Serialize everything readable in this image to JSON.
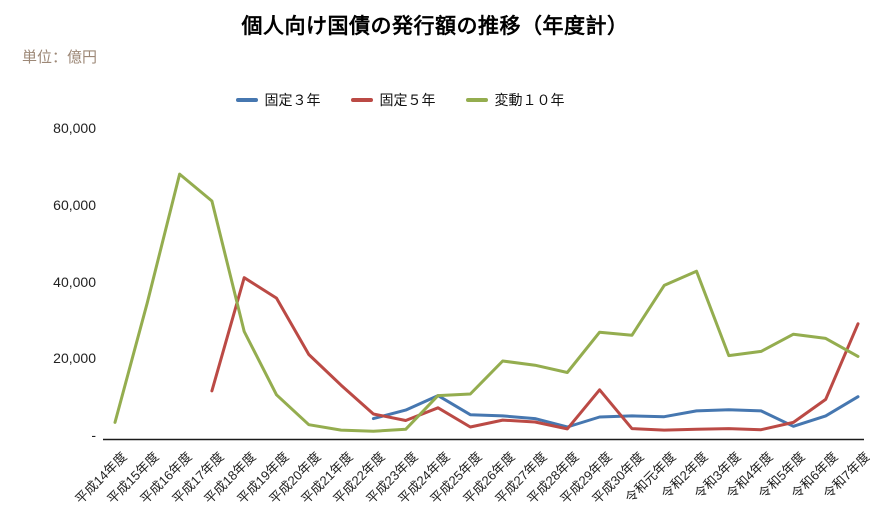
{
  "title": "個人向け国債の発行額の推移（年度計）",
  "unit_label": "単位：億円",
  "colors": {
    "fixed_3yr": "#4677b0",
    "fixed_5yr": "#bb4a45",
    "variable_10yr": "#94ad4f",
    "unit_label_text": "#9d8877",
    "axis": "#1a1a1a"
  },
  "chart_data": {
    "type": "line",
    "title": "個人向け国債の発行額の推移（年度計）",
    "unit": "億円",
    "grid": false,
    "legend_position": "top",
    "ylim": [
      0,
      80000
    ],
    "yticks": [
      {
        "value": 0,
        "label": "-"
      },
      {
        "value": 20000,
        "label": "20,000"
      },
      {
        "value": 40000,
        "label": "40,000"
      },
      {
        "value": 60000,
        "label": "60,000"
      },
      {
        "value": 80000,
        "label": "80,000"
      }
    ],
    "categories": [
      "平成14年度",
      "平成15年度",
      "平成16年度",
      "平成17年度",
      "平成18年度",
      "平成19年度",
      "平成20年度",
      "平成21年度",
      "平成22年度",
      "平成23年度",
      "平成24年度",
      "平成25年度",
      "平成26年度",
      "平成27年度",
      "平成28年度",
      "平成29年度",
      "平成30年度",
      "令和元年度",
      "令和2年度",
      "令和3年度",
      "令和4年度",
      "令和5年度",
      "令和6年度",
      "令和7年度"
    ],
    "series": [
      {
        "id": "fixed-3yr",
        "name": "固定３年",
        "color": "#4677b0",
        "values": [
          null,
          null,
          null,
          null,
          null,
          null,
          null,
          null,
          4800,
          7000,
          10800,
          5800,
          5500,
          4800,
          2600,
          5200,
          5500,
          5300,
          6800,
          7100,
          6800,
          2800,
          5500,
          10500
        ]
      },
      {
        "id": "fixed-5yr",
        "name": "固定５年",
        "color": "#bb4a45",
        "values": [
          null,
          null,
          null,
          12000,
          41500,
          36200,
          21500,
          13500,
          6000,
          4300,
          7600,
          2600,
          4400,
          3900,
          2100,
          12300,
          2200,
          1800,
          2000,
          2200,
          1900,
          3800,
          9800,
          29500
        ]
      },
      {
        "id": "variable-10yr",
        "name": "変動１０年",
        "color": "#94ad4f",
        "values": [
          3800,
          35000,
          68500,
          61500,
          27500,
          11000,
          3200,
          1800,
          1500,
          2000,
          10800,
          11200,
          19800,
          18700,
          16800,
          27300,
          26500,
          39500,
          43200,
          21200,
          22300,
          26800,
          25700,
          21000
        ]
      }
    ]
  }
}
